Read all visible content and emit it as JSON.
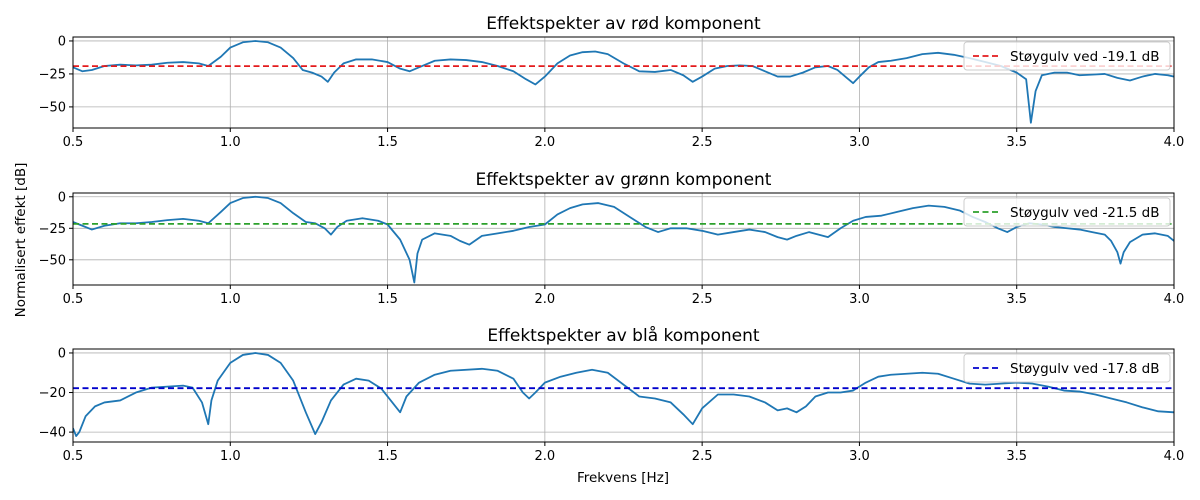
{
  "figure": {
    "ylabel": "Normalisert effekt [dB]",
    "xlabel": "Frekvens [Hz]"
  },
  "chart_data": [
    {
      "type": "line",
      "title": "Effektspekter av rød komponent",
      "xlim": [
        0.5,
        4.0
      ],
      "ylim": [
        -66,
        3
      ],
      "xticks": [
        0.5,
        1.0,
        1.5,
        2.0,
        2.5,
        3.0,
        3.5,
        4.0
      ],
      "xtick_labels": [
        "0.5",
        "1.0",
        "1.5",
        "2.0",
        "2.5",
        "3.0",
        "3.5",
        "4.0"
      ],
      "yticks": [
        0,
        -25,
        -50
      ],
      "ytick_labels": [
        "0",
        "−25",
        "−50"
      ],
      "grid": true,
      "legend_position": "top-right",
      "series": [
        {
          "kind": "spectrum",
          "color": "#1f77b4",
          "x": [
            0.5,
            0.53,
            0.56,
            0.6,
            0.65,
            0.7,
            0.75,
            0.8,
            0.85,
            0.9,
            0.93,
            0.97,
            1.0,
            1.04,
            1.08,
            1.12,
            1.16,
            1.2,
            1.23,
            1.26,
            1.29,
            1.31,
            1.33,
            1.36,
            1.4,
            1.45,
            1.5,
            1.54,
            1.57,
            1.6,
            1.65,
            1.7,
            1.75,
            1.8,
            1.85,
            1.9,
            1.94,
            1.97,
            2.0,
            2.04,
            2.08,
            2.12,
            2.16,
            2.2,
            2.25,
            2.3,
            2.35,
            2.4,
            2.44,
            2.47,
            2.5,
            2.54,
            2.58,
            2.62,
            2.66,
            2.7,
            2.74,
            2.78,
            2.82,
            2.86,
            2.9,
            2.93,
            2.96,
            2.98,
            3.0,
            3.03,
            3.06,
            3.1,
            3.15,
            3.2,
            3.25,
            3.3,
            3.35,
            3.4,
            3.45,
            3.5,
            3.53,
            3.545,
            3.56,
            3.58,
            3.62,
            3.66,
            3.7,
            3.74,
            3.78,
            3.82,
            3.86,
            3.9,
            3.94,
            3.98,
            4.0
          ],
          "y": [
            -20,
            -23,
            -22,
            -19,
            -18,
            -18.5,
            -18,
            -16.5,
            -16,
            -17,
            -19,
            -12,
            -5,
            -1,
            0,
            -1,
            -5,
            -13,
            -22,
            -24,
            -27,
            -31,
            -24,
            -17,
            -14,
            -14,
            -16,
            -21,
            -23,
            -20,
            -15,
            -14,
            -14.5,
            -16,
            -19,
            -23,
            -29,
            -33,
            -27,
            -17,
            -11,
            -8.5,
            -8,
            -10,
            -17,
            -23,
            -23.5,
            -22,
            -26,
            -31,
            -27,
            -21,
            -19,
            -18.5,
            -19,
            -23,
            -27,
            -27,
            -24,
            -20,
            -19,
            -22,
            -28,
            -32,
            -27,
            -20,
            -16,
            -15,
            -13,
            -10,
            -9,
            -10.5,
            -13,
            -16,
            -19,
            -24,
            -29,
            -62,
            -38,
            -26,
            -24,
            -24,
            -26,
            -25.5,
            -25,
            -28,
            -30,
            -27,
            -25,
            -26,
            -27
          ]
        },
        {
          "kind": "noise_floor",
          "name": "Støygulv ved -19.1 dB",
          "value": -19.1,
          "color": "#e41a1c"
        }
      ]
    },
    {
      "type": "line",
      "title": "Effektspekter av grønn komponent",
      "xlim": [
        0.5,
        4.0
      ],
      "ylim": [
        -70,
        3
      ],
      "xticks": [
        0.5,
        1.0,
        1.5,
        2.0,
        2.5,
        3.0,
        3.5,
        4.0
      ],
      "xtick_labels": [
        "0.5",
        "1.0",
        "1.5",
        "2.0",
        "2.5",
        "3.0",
        "3.5",
        "4.0"
      ],
      "yticks": [
        0,
        -25,
        -50
      ],
      "ytick_labels": [
        "0",
        "−25",
        "−50"
      ],
      "grid": true,
      "legend_position": "top-right",
      "series": [
        {
          "kind": "spectrum",
          "color": "#1f77b4",
          "x": [
            0.5,
            0.53,
            0.56,
            0.6,
            0.65,
            0.7,
            0.75,
            0.8,
            0.85,
            0.9,
            0.93,
            0.97,
            1.0,
            1.04,
            1.08,
            1.12,
            1.16,
            1.2,
            1.24,
            1.27,
            1.3,
            1.32,
            1.34,
            1.37,
            1.42,
            1.47,
            1.5,
            1.54,
            1.57,
            1.585,
            1.595,
            1.61,
            1.65,
            1.7,
            1.73,
            1.76,
            1.8,
            1.85,
            1.9,
            1.95,
            2.0,
            2.04,
            2.08,
            2.12,
            2.17,
            2.22,
            2.27,
            2.32,
            2.36,
            2.4,
            2.45,
            2.5,
            2.55,
            2.6,
            2.65,
            2.7,
            2.74,
            2.77,
            2.8,
            2.84,
            2.87,
            2.9,
            2.94,
            2.98,
            3.02,
            3.07,
            3.12,
            3.17,
            3.22,
            3.27,
            3.32,
            3.36,
            3.4,
            3.44,
            3.47,
            3.5,
            3.54,
            3.58,
            3.62,
            3.66,
            3.7,
            3.74,
            3.78,
            3.8,
            3.82,
            3.83,
            3.84,
            3.86,
            3.9,
            3.94,
            3.98,
            4.0
          ],
          "y": [
            -20,
            -23,
            -26,
            -23,
            -21,
            -21,
            -20,
            -18.5,
            -17.5,
            -19,
            -21,
            -12,
            -5,
            -1,
            0,
            -1,
            -5,
            -13,
            -20,
            -21,
            -25,
            -30,
            -24,
            -19,
            -17,
            -19,
            -22,
            -34,
            -50,
            -68,
            -45,
            -34,
            -29,
            -31,
            -35,
            -38,
            -31,
            -29,
            -27,
            -24,
            -22,
            -14,
            -9,
            -6,
            -5,
            -8,
            -16,
            -24,
            -28,
            -25,
            -25,
            -27,
            -30,
            -28,
            -26,
            -28,
            -32,
            -34,
            -31,
            -28,
            -30,
            -32,
            -25,
            -19,
            -16,
            -15,
            -12,
            -9,
            -7,
            -8,
            -11,
            -16,
            -20,
            -25,
            -28,
            -24,
            -21,
            -22,
            -24,
            -25,
            -26,
            -28,
            -30,
            -35,
            -44,
            -53,
            -44,
            -36,
            -30,
            -29,
            -31,
            -35
          ]
        },
        {
          "kind": "noise_floor",
          "name": "Støygulv ved -21.5 dB",
          "value": -21.5,
          "color": "#2ca02c"
        }
      ]
    },
    {
      "type": "line",
      "title": "Effektspekter av blå komponent",
      "xlim": [
        0.5,
        4.0
      ],
      "ylim": [
        -45,
        2
      ],
      "xticks": [
        0.5,
        1.0,
        1.5,
        2.0,
        2.5,
        3.0,
        3.5,
        4.0
      ],
      "xtick_labels": [
        "0.5",
        "1.0",
        "1.5",
        "2.0",
        "2.5",
        "3.0",
        "3.5",
        "4.0"
      ],
      "yticks": [
        0,
        -20,
        -40
      ],
      "ytick_labels": [
        "0",
        "−20",
        "−40"
      ],
      "grid": true,
      "legend_position": "top-right",
      "series": [
        {
          "kind": "spectrum",
          "color": "#1f77b4",
          "x": [
            0.5,
            0.51,
            0.52,
            0.54,
            0.57,
            0.6,
            0.65,
            0.7,
            0.75,
            0.8,
            0.85,
            0.88,
            0.91,
            0.93,
            0.94,
            0.96,
            1.0,
            1.04,
            1.08,
            1.12,
            1.16,
            1.2,
            1.24,
            1.27,
            1.29,
            1.32,
            1.36,
            1.4,
            1.44,
            1.48,
            1.51,
            1.54,
            1.56,
            1.6,
            1.65,
            1.7,
            1.8,
            1.85,
            1.9,
            1.93,
            1.95,
            1.97,
            2.0,
            2.05,
            2.1,
            2.15,
            2.2,
            2.25,
            2.3,
            2.35,
            2.4,
            2.44,
            2.47,
            2.5,
            2.55,
            2.6,
            2.65,
            2.7,
            2.74,
            2.77,
            2.8,
            2.83,
            2.86,
            2.9,
            2.94,
            2.98,
            3.02,
            3.06,
            3.1,
            3.15,
            3.2,
            3.25,
            3.3,
            3.35,
            3.4,
            3.45,
            3.5,
            3.55,
            3.6,
            3.65,
            3.7,
            3.75,
            3.8,
            3.85,
            3.9,
            3.95,
            4.0
          ],
          "y": [
            -38,
            -42,
            -40,
            -32,
            -27,
            -25,
            -24,
            -20,
            -17.5,
            -17,
            -16.5,
            -17.5,
            -25,
            -36,
            -24,
            -14,
            -5,
            -1,
            0,
            -1,
            -5,
            -14,
            -30,
            -41,
            -35,
            -24,
            -16,
            -13,
            -14,
            -18,
            -24,
            -30,
            -22,
            -15,
            -11,
            -9,
            -8,
            -9,
            -13,
            -20,
            -23,
            -20,
            -15,
            -12,
            -10,
            -8.5,
            -10,
            -16,
            -22,
            -23,
            -25,
            -31,
            -36,
            -28,
            -21,
            -21,
            -22,
            -25,
            -29,
            -28,
            -30,
            -27,
            -22,
            -20,
            -20,
            -19,
            -15,
            -12,
            -11,
            -10.5,
            -10,
            -10.5,
            -13,
            -15.5,
            -16,
            -15.5,
            -15,
            -15.5,
            -17,
            -19,
            -19.5,
            -21,
            -23,
            -25,
            -27.5,
            -29.5,
            -30
          ]
        },
        {
          "kind": "noise_floor",
          "name": "Støygulv ved -17.8 dB",
          "value": -17.8,
          "color": "#0000cc"
        }
      ]
    }
  ]
}
